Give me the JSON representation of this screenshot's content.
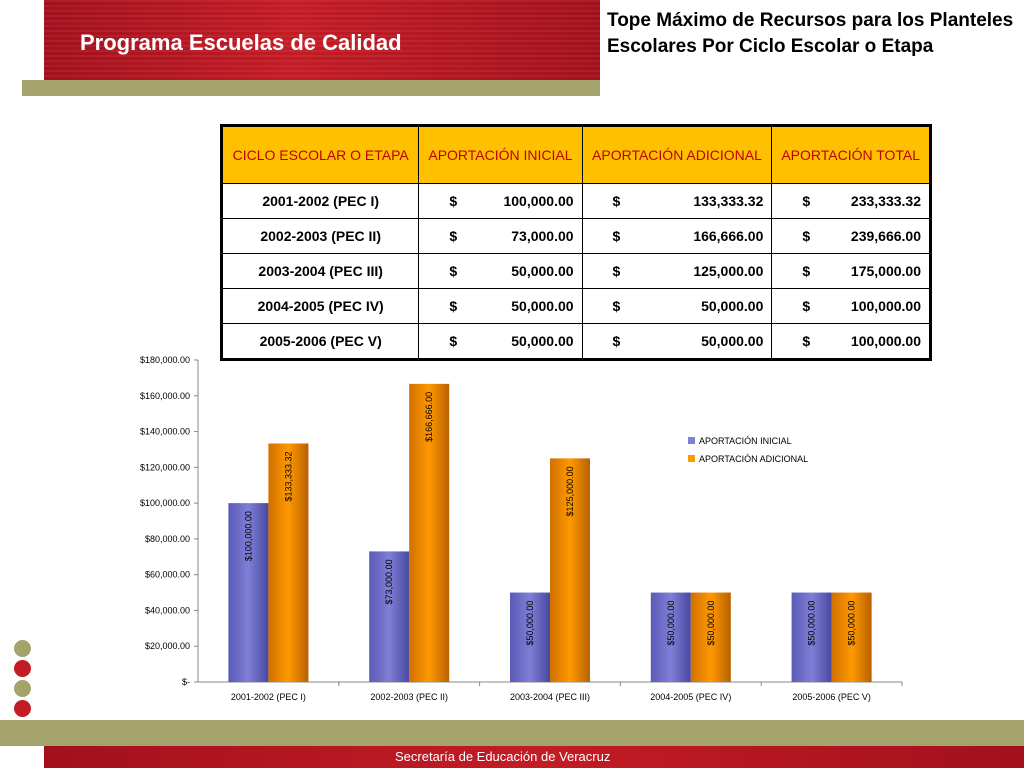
{
  "header": {
    "title": "Programa Escuelas de Calidad",
    "subtitle": "Tope Máximo de Recursos para los Planteles Escolares Por Ciclo Escolar o Etapa"
  },
  "table": {
    "headers": [
      "CICLO ESCOLAR O ETAPA",
      "APORTACIÓN INICIAL",
      "APORTACIÓN ADICIONAL",
      "APORTACIÓN TOTAL"
    ],
    "currency_symbol": "$",
    "rows": [
      [
        "2001-2002 (PEC I)",
        "100,000.00",
        "133,333.32",
        "233,333.32"
      ],
      [
        "2002-2003 (PEC II)",
        "73,000.00",
        "166,666.00",
        "239,666.00"
      ],
      [
        "2003-2004 (PEC III)",
        "50,000.00",
        "125,000.00",
        "175,000.00"
      ],
      [
        "2004-2005 (PEC IV)",
        "50,000.00",
        "50,000.00",
        "100,000.00"
      ],
      [
        "2005-2006 (PEC V)",
        "50,000.00",
        "50,000.00",
        "100,000.00"
      ]
    ]
  },
  "chart_data": {
    "type": "bar",
    "categories": [
      "2001-2002 (PEC I)",
      "2002-2003 (PEC II)",
      "2003-2004 (PEC III)",
      "2004-2005 (PEC IV)",
      "2005-2006 (PEC V)"
    ],
    "series": [
      {
        "name": "APORTACIÓN INICIAL",
        "values": [
          100000,
          73000,
          50000,
          50000,
          50000
        ],
        "labels": [
          "$100,000.00",
          "$73,000.00",
          "$50,000.00",
          "$50,000.00",
          "$50,000.00"
        ]
      },
      {
        "name": "APORTACIÓN ADICIONAL",
        "values": [
          133333.32,
          166666,
          125000,
          50000,
          50000
        ],
        "labels": [
          "$133,333.32",
          "$166,666.00",
          "$125,000.00",
          "$50,000.00",
          "$50,000.00"
        ]
      }
    ],
    "ylim": [
      0,
      180000
    ],
    "ytick_labels": [
      "$-",
      "$20,000.00",
      "$40,000.00",
      "$60,000.00",
      "$80,000.00",
      "$100,000.00",
      "$120,000.00",
      "$140,000.00",
      "$160,000.00",
      "$180,000.00"
    ],
    "legend_position": "right",
    "grid": false,
    "colors": {
      "inicial": "#7f7fd6",
      "adicional": "#ff9900"
    }
  },
  "footer": {
    "text": "Secretaría de Educación de Veracruz"
  },
  "decor": {
    "dot_colors": [
      "#a3a36b",
      "#c31c25",
      "#a3a36b",
      "#c31c25"
    ]
  }
}
